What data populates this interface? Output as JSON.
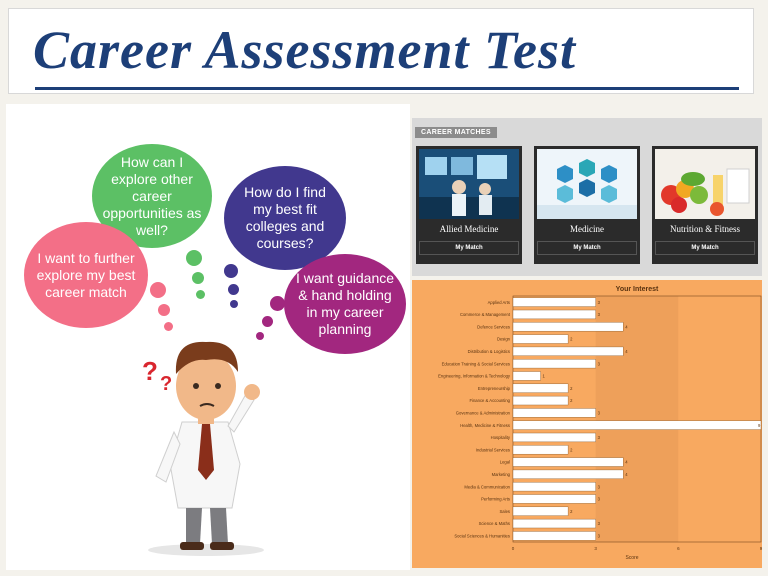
{
  "title": "Career Assessment Test",
  "bubbles": {
    "explore_other": "How can I explore other career opportunities as well?",
    "further_match": "I want to further explore my best career match",
    "best_fit": "How do I find my best fit colleges and courses?",
    "guidance": "I want guidance & hand holding in my career planning"
  },
  "matches": {
    "label": "CAREER MATCHES",
    "cards": [
      {
        "name": "Allied Medicine",
        "button": "My Match"
      },
      {
        "name": "Medicine",
        "button": "My Match"
      },
      {
        "name": "Nutrition & Fitness",
        "button": "My Match"
      }
    ]
  },
  "colors": {
    "title": "#1d3f78",
    "chart_bg": "#f8a960",
    "chart_band": "#eea05a"
  },
  "chart_data": {
    "type": "bar",
    "orientation": "horizontal",
    "title": "Your Interest",
    "xlabel": "Score",
    "xlim": [
      0,
      9
    ],
    "xticks": [
      0,
      3,
      6,
      9
    ],
    "categories": [
      "Applied Arts",
      "Commerce & Management",
      "Defence Services",
      "Design",
      "Distribution & Logistics",
      "Education Training & Social Services",
      "Engineering, Information & Technology",
      "Entrepreneurship",
      "Finance & Accounting",
      "Governance & Administration",
      "Health, Medicine & Fitness",
      "Hospitality",
      "Industrial Services",
      "Legal",
      "Marketing",
      "Media & Communication",
      "Performing Arts",
      "Sales",
      "Science & Maths",
      "Social Sciences & Humanities"
    ],
    "values": [
      3,
      3,
      4,
      2,
      4,
      3,
      1,
      2,
      2,
      3,
      9,
      3,
      2,
      4,
      4,
      3,
      3,
      2,
      3,
      3
    ]
  }
}
